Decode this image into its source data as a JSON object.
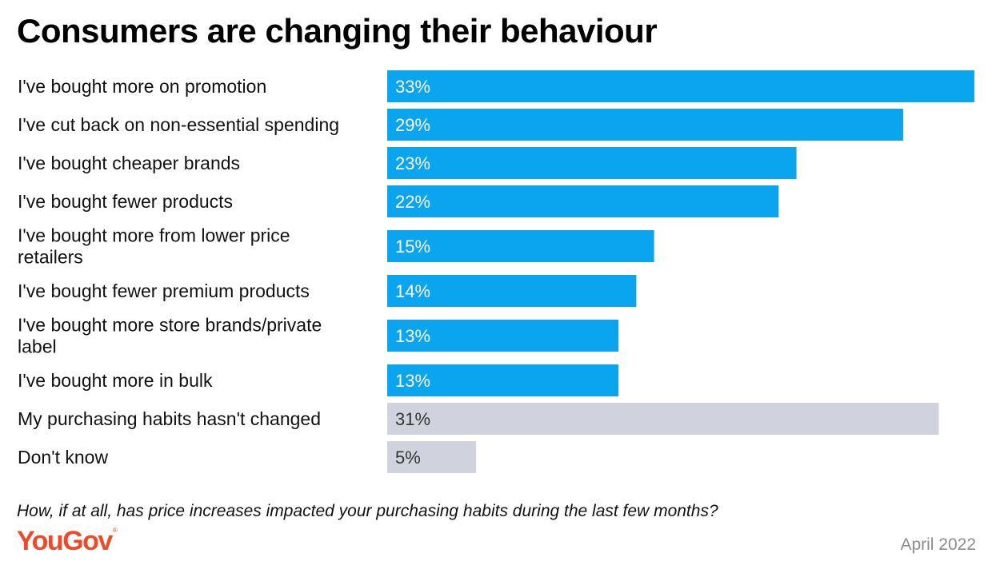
{
  "chart_data": {
    "type": "bar",
    "orientation": "horizontal",
    "title": "Consumers are changing their behaviour",
    "categories": [
      [
        "I've bought more on promotion"
      ],
      [
        "I've cut back on non-essential spending"
      ],
      [
        "I've bought cheaper brands"
      ],
      [
        "I've bought fewer products"
      ],
      [
        "I've bought more from lower price",
        "retailers"
      ],
      [
        "I've bought fewer premium products"
      ],
      [
        "I've bought more store brands/private",
        "label"
      ],
      [
        "I've bought more in bulk"
      ],
      [
        "My purchasing habits hasn't changed"
      ],
      [
        "Don't know"
      ]
    ],
    "values": [
      33,
      29,
      23,
      22,
      15,
      14,
      13,
      13,
      31,
      5
    ],
    "value_labels": [
      "33%",
      "29%",
      "23%",
      "22%",
      "15%",
      "14%",
      "13%",
      "13%",
      "31%",
      "5%"
    ],
    "bar_colors": [
      "#0aa5ee",
      "#0aa5ee",
      "#0aa5ee",
      "#0aa5ee",
      "#0aa5ee",
      "#0aa5ee",
      "#0aa5ee",
      "#0aa5ee",
      "#d0d3de",
      "#d0d3de"
    ],
    "label_colors": [
      "#ffffff",
      "#ffffff",
      "#ffffff",
      "#ffffff",
      "#ffffff",
      "#ffffff",
      "#ffffff",
      "#ffffff",
      "#333333",
      "#333333"
    ],
    "xlim": [
      0,
      33
    ],
    "grid": false,
    "legend": "none"
  },
  "footer": {
    "question": "How, if at all, has price increases impacted your purchasing habits during the last few months?",
    "brand": "YouGov",
    "registered_mark": "®",
    "date": "April 2022"
  },
  "colors": {
    "primary_bar": "#0aa5ee",
    "secondary_bar": "#d0d3de",
    "brand": "#f0492a"
  }
}
